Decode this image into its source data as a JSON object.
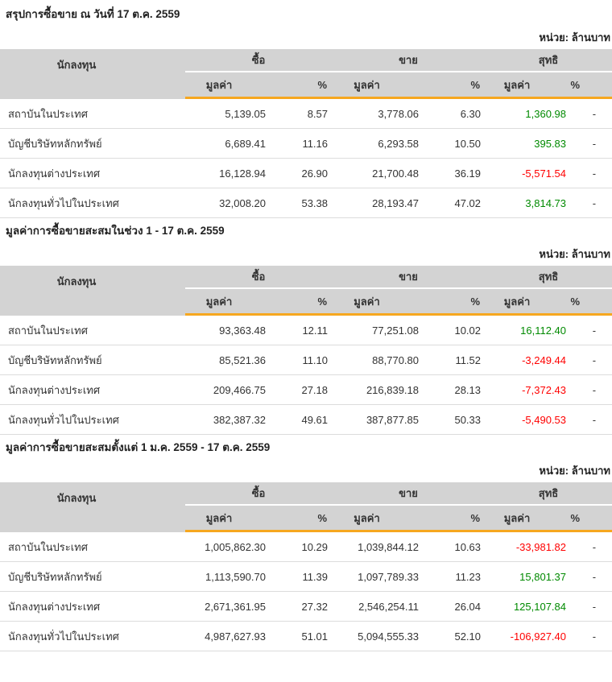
{
  "page": {
    "unit_label": "หน่วย: ล้านบาท"
  },
  "columns": {
    "investor": "นักลงทุน",
    "buy": "ซื้อ",
    "sell": "ขาย",
    "net": "สุทธิ",
    "value": "มูลค่า",
    "percent": "%"
  },
  "colors": {
    "header_bg": "#d3d3d3",
    "accent_orange": "#f6a71f",
    "positive_green": "#008a00",
    "negative_red": "#ff0000",
    "row_border": "#dcdcdc"
  },
  "tables": [
    {
      "title": "สรุปการซื้อขาย ณ วันที่ 17 ต.ค. 2559",
      "rows": [
        {
          "investor": "สถาบันในประเทศ",
          "buy_value": "5,139.05",
          "buy_pct": "8.57",
          "sell_value": "3,778.06",
          "sell_pct": "6.30",
          "net_value": "1,360.98",
          "net_pct": "-"
        },
        {
          "investor": "บัญชีบริษัทหลักทรัพย์",
          "buy_value": "6,689.41",
          "buy_pct": "11.16",
          "sell_value": "6,293.58",
          "sell_pct": "10.50",
          "net_value": "395.83",
          "net_pct": "-"
        },
        {
          "investor": "นักลงทุนต่างประเทศ",
          "buy_value": "16,128.94",
          "buy_pct": "26.90",
          "sell_value": "21,700.48",
          "sell_pct": "36.19",
          "net_value": "-5,571.54",
          "net_pct": "-"
        },
        {
          "investor": "นักลงทุนทั่วไปในประเทศ",
          "buy_value": "32,008.20",
          "buy_pct": "53.38",
          "sell_value": "28,193.47",
          "sell_pct": "47.02",
          "net_value": "3,814.73",
          "net_pct": "-"
        }
      ]
    },
    {
      "title": "มูลค่าการซื้อขายสะสมในช่วง 1 - 17 ต.ค. 2559",
      "rows": [
        {
          "investor": "สถาบันในประเทศ",
          "buy_value": "93,363.48",
          "buy_pct": "12.11",
          "sell_value": "77,251.08",
          "sell_pct": "10.02",
          "net_value": "16,112.40",
          "net_pct": "-"
        },
        {
          "investor": "บัญชีบริษัทหลักทรัพย์",
          "buy_value": "85,521.36",
          "buy_pct": "11.10",
          "sell_value": "88,770.80",
          "sell_pct": "11.52",
          "net_value": "-3,249.44",
          "net_pct": "-"
        },
        {
          "investor": "นักลงทุนต่างประเทศ",
          "buy_value": "209,466.75",
          "buy_pct": "27.18",
          "sell_value": "216,839.18",
          "sell_pct": "28.13",
          "net_value": "-7,372.43",
          "net_pct": "-"
        },
        {
          "investor": "นักลงทุนทั่วไปในประเทศ",
          "buy_value": "382,387.32",
          "buy_pct": "49.61",
          "sell_value": "387,877.85",
          "sell_pct": "50.33",
          "net_value": "-5,490.53",
          "net_pct": "-"
        }
      ]
    },
    {
      "title": "มูลค่าการซื้อขายสะสมตั้งแต่ 1 ม.ค. 2559 - 17 ต.ค. 2559",
      "rows": [
        {
          "investor": "สถาบันในประเทศ",
          "buy_value": "1,005,862.30",
          "buy_pct": "10.29",
          "sell_value": "1,039,844.12",
          "sell_pct": "10.63",
          "net_value": "-33,981.82",
          "net_pct": "-"
        },
        {
          "investor": "บัญชีบริษัทหลักทรัพย์",
          "buy_value": "1,113,590.70",
          "buy_pct": "11.39",
          "sell_value": "1,097,789.33",
          "sell_pct": "11.23",
          "net_value": "15,801.37",
          "net_pct": "-"
        },
        {
          "investor": "นักลงทุนต่างประเทศ",
          "buy_value": "2,671,361.95",
          "buy_pct": "27.32",
          "sell_value": "2,546,254.11",
          "sell_pct": "26.04",
          "net_value": "125,107.84",
          "net_pct": "-"
        },
        {
          "investor": "นักลงทุนทั่วไปในประเทศ",
          "buy_value": "4,987,627.93",
          "buy_pct": "51.01",
          "sell_value": "5,094,555.33",
          "sell_pct": "52.10",
          "net_value": "-106,927.40",
          "net_pct": "-"
        }
      ]
    }
  ]
}
